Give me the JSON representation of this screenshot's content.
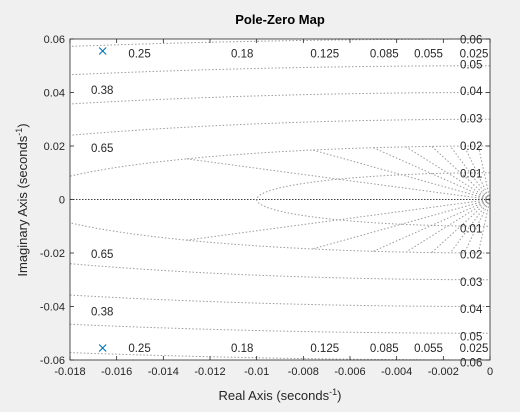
{
  "chart_data": {
    "type": "scatter",
    "title": "Pole-Zero Map",
    "xlabel_main": "Real Axis (seconds",
    "xlabel_sup": "-1",
    "xlabel_end": ")",
    "ylabel_main": "Imaginary Axis (seconds",
    "ylabel_sup": "-1",
    "ylabel_end": ")",
    "xlim": [
      -0.018,
      0
    ],
    "ylim": [
      -0.06,
      0.06
    ],
    "x_ticks": [
      -0.018,
      -0.016,
      -0.014,
      -0.012,
      -0.01,
      -0.008,
      -0.006,
      -0.004,
      -0.002,
      0
    ],
    "x_tick_labels": [
      "-0.018",
      "-0.016",
      "-0.014",
      "-0.012",
      "-0.01",
      "-0.008",
      "-0.006",
      "-0.004",
      "-0.002",
      "0"
    ],
    "y_ticks": [
      -0.06,
      -0.04,
      -0.02,
      0,
      0.02,
      0.04,
      0.06
    ],
    "y_tick_labels": [
      "-0.06",
      "-0.04",
      "-0.02",
      "0",
      "0.02",
      "0.04",
      "0.06"
    ],
    "grid": "zgrid (damping ratio lines and natural frequency arcs)",
    "damping_ratios": [
      0.25,
      0.38,
      0.65,
      0.18,
      0.125,
      0.085,
      0.055,
      0.025
    ],
    "damping_labels": [
      {
        "text": "0.25",
        "x": -0.0155,
        "y": 0.0545
      },
      {
        "text": "0.18",
        "x": -0.0111,
        "y": 0.0545
      },
      {
        "text": "0.125",
        "x": -0.0077,
        "y": 0.0545
      },
      {
        "text": "0.085",
        "x": -0.00515,
        "y": 0.0545
      },
      {
        "text": "0.055",
        "x": -0.00325,
        "y": 0.0545
      },
      {
        "text": "0.025",
        "x": -0.0013,
        "y": 0.0545
      },
      {
        "text": "0.38",
        "x": -0.0171,
        "y": 0.041
      },
      {
        "text": "0.65",
        "x": -0.0171,
        "y": 0.0193
      },
      {
        "text": "0.65",
        "x": -0.0171,
        "y": -0.0203
      },
      {
        "text": "0.38",
        "x": -0.0171,
        "y": -0.0418
      },
      {
        "text": "0.25",
        "x": -0.0155,
        "y": -0.0555
      },
      {
        "text": "0.18",
        "x": -0.0111,
        "y": -0.0555
      },
      {
        "text": "0.125",
        "x": -0.0077,
        "y": -0.0555
      },
      {
        "text": "0.085",
        "x": -0.00515,
        "y": -0.0555
      },
      {
        "text": "0.055",
        "x": -0.00325,
        "y": -0.0555
      },
      {
        "text": "0.025",
        "x": -0.0013,
        "y": -0.0555
      }
    ],
    "frequency_labels": [
      {
        "text": "0.06",
        "x": -0.00085,
        "y": 0.0598
      },
      {
        "text": "0.05",
        "x": -0.00085,
        "y": 0.0505
      },
      {
        "text": "0.04",
        "x": -0.00085,
        "y": 0.0405
      },
      {
        "text": "0.03",
        "x": -0.00085,
        "y": 0.0303
      },
      {
        "text": "0.02",
        "x": -0.00085,
        "y": 0.02
      },
      {
        "text": "0.01",
        "x": -0.00085,
        "y": 0.0098
      },
      {
        "text": "0.01",
        "x": -0.00085,
        "y": -0.0108
      },
      {
        "text": "0.02",
        "x": -0.00085,
        "y": -0.0205
      },
      {
        "text": "0.03",
        "x": -0.00085,
        "y": -0.0308
      },
      {
        "text": "0.04",
        "x": -0.00085,
        "y": -0.041
      },
      {
        "text": "0.05",
        "x": -0.00085,
        "y": -0.0512
      },
      {
        "text": "0.06",
        "x": -0.00085,
        "y": -0.061
      }
    ],
    "series": [
      {
        "marker": "x",
        "color": "#0072bd",
        "points": [
          {
            "x": -0.0166,
            "y": 0.0555
          },
          {
            "x": -0.0166,
            "y": -0.0555
          }
        ]
      }
    ]
  },
  "colors": {
    "figure_bg": "#f0f0f0",
    "axes_bg": "#ffffff",
    "grid": "#9a9a9a",
    "axis_text": "#262626",
    "label_text": "#262626",
    "marker": "#0072bd"
  }
}
